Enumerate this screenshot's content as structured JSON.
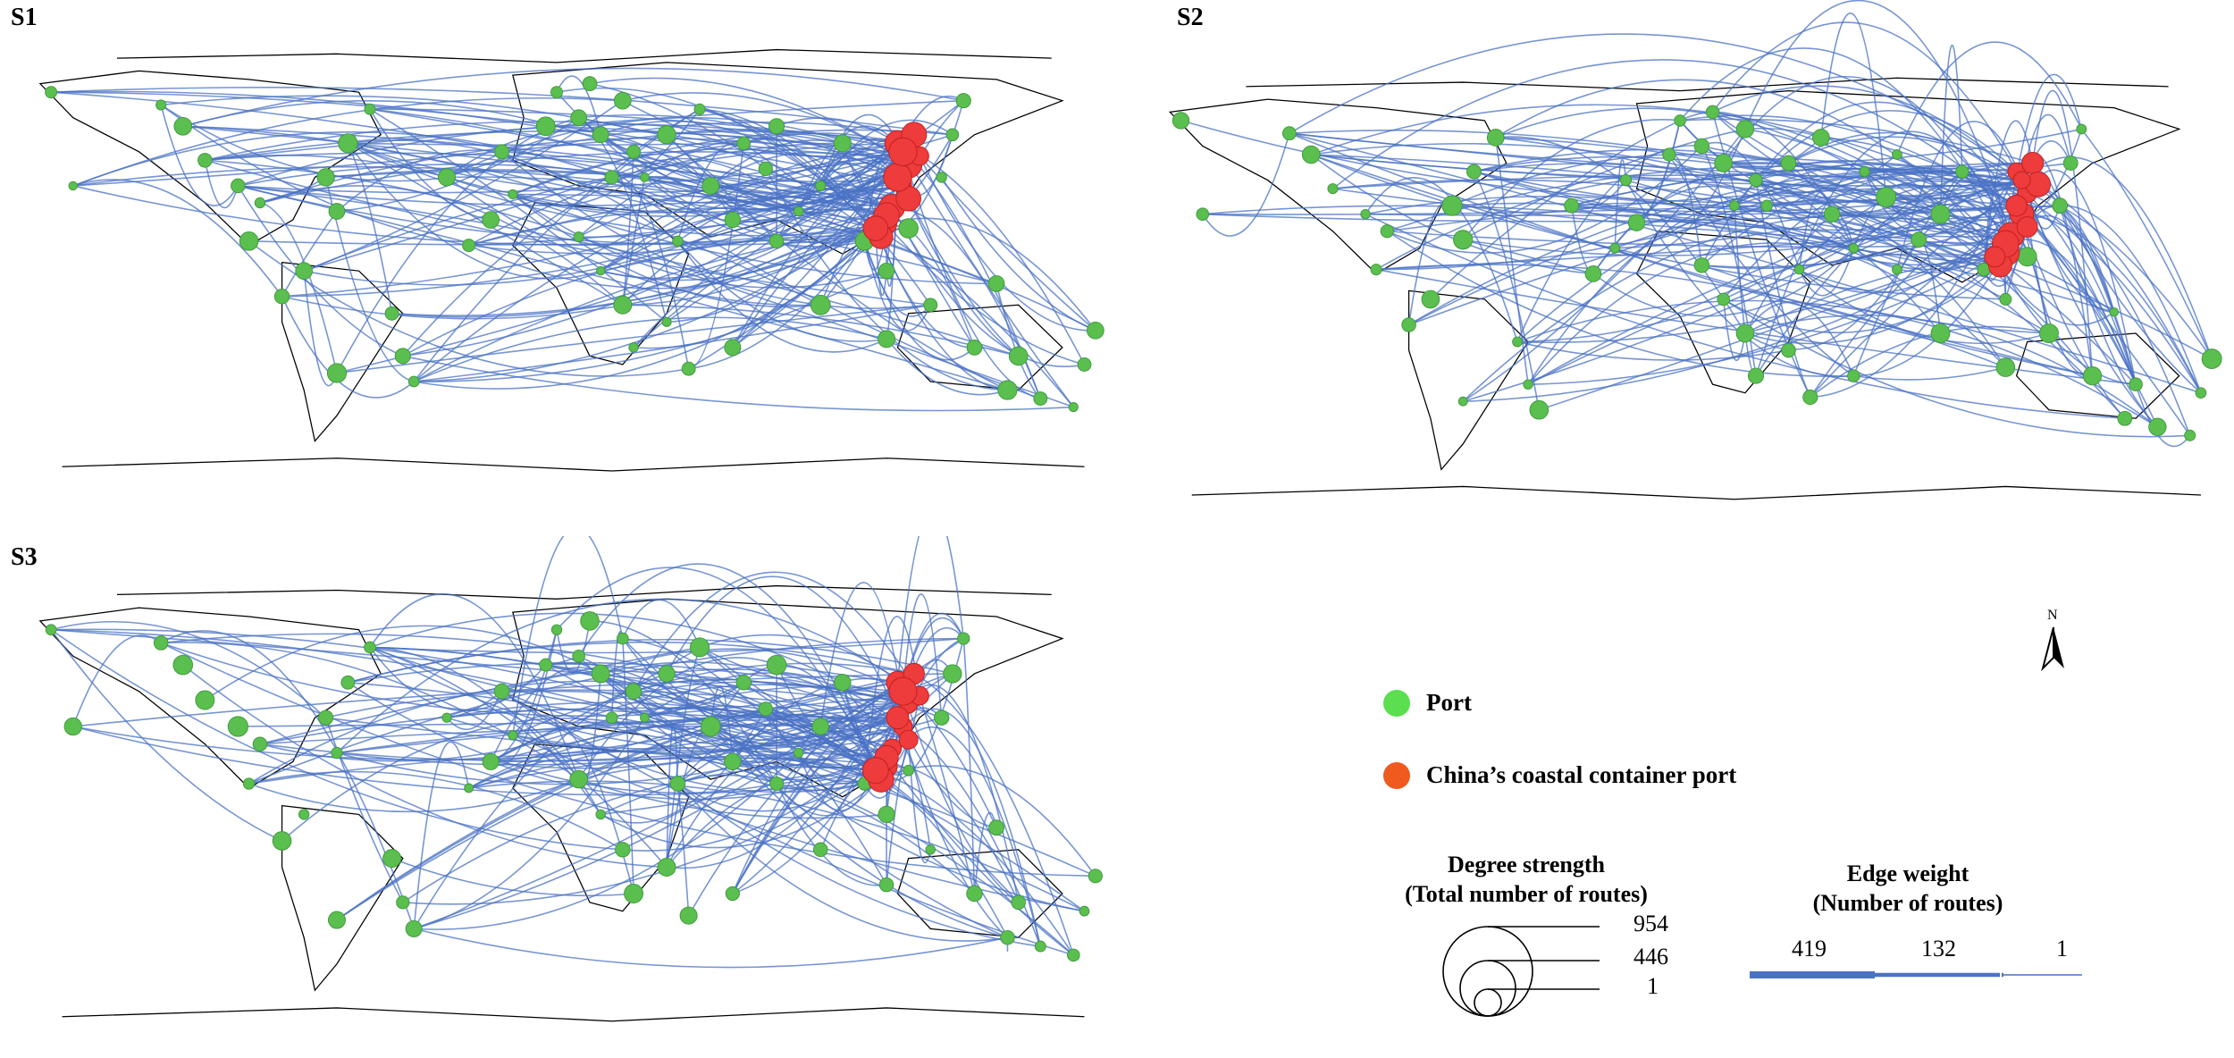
{
  "panels": [
    {
      "label": "S1"
    },
    {
      "label": "S2"
    },
    {
      "label": "S3"
    }
  ],
  "legend": {
    "port": {
      "label": "Port",
      "color": "#5bdf4f"
    },
    "china_port": {
      "label": "China’s coastal container port",
      "color": "#f05a1e"
    },
    "degree_strength": {
      "title_line1": "Degree strength",
      "title_line2": "(Total number of routes)",
      "values": [
        "954",
        "446",
        "1"
      ]
    },
    "edge_weight": {
      "title_line1": "Edge weight",
      "title_line2": "(Number of routes)",
      "values": [
        "419",
        "132",
        "1"
      ]
    },
    "north_arrow": {
      "label": "N"
    }
  },
  "colors": {
    "route": "#4a72c4",
    "port_node": "#5bbf4f",
    "china_node": "#ee3b3b",
    "coastline": "#000000"
  }
}
